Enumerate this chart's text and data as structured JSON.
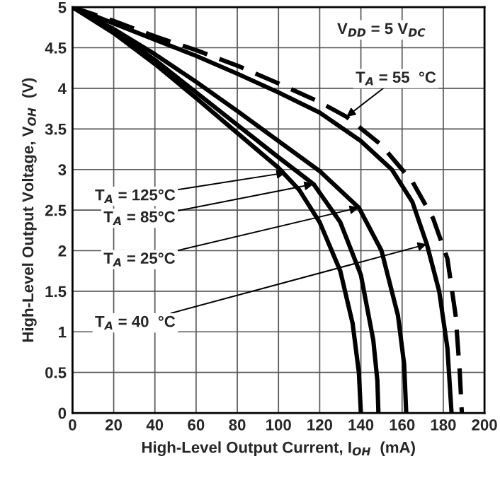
{
  "chart_data": {
    "type": "line",
    "xlabel": "High-Level Output Current, I$_{OH}$  (mA)",
    "ylabel": "High-Level Output Voltage, V$_{OH}$  (V)",
    "xlim": [
      0,
      200
    ],
    "xticks": [
      0,
      20,
      40,
      60,
      80,
      100,
      120,
      140,
      160,
      180,
      200
    ],
    "ylim": [
      0,
      5
    ],
    "yticks": [
      0,
      0.5,
      1,
      1.5,
      2,
      2.5,
      3,
      3.5,
      4,
      4.5,
      5
    ],
    "grid": true,
    "legend": false,
    "marker": "none",
    "series": [
      {
        "color": "#000000",
        "line_style": "solid",
        "x": [
          0,
          20,
          40,
          60,
          80,
          100,
          110,
          120,
          130,
          136,
          139,
          140
        ],
        "values": [
          5,
          4.68,
          4.3,
          3.88,
          3.45,
          3.02,
          2.75,
          2.35,
          1.75,
          1.1,
          0.5,
          0
        ]
      },
      {
        "color": "#000000",
        "line_style": "solid",
        "x": [
          0,
          20,
          40,
          60,
          80,
          100,
          117,
          130,
          140,
          146,
          148,
          148.5
        ],
        "values": [
          5,
          4.7,
          4.35,
          3.95,
          3.55,
          3.15,
          2.82,
          2.35,
          1.7,
          0.9,
          0.4,
          0
        ]
      },
      {
        "color": "#000000",
        "line_style": "solid",
        "x": [
          0,
          20,
          40,
          60,
          80,
          100,
          120,
          139,
          150,
          158,
          161,
          162
        ],
        "values": [
          5,
          4.73,
          4.42,
          4.08,
          3.72,
          3.35,
          2.98,
          2.53,
          2.0,
          1.2,
          0.6,
          0
        ]
      },
      {
        "color": "#000000",
        "line_style": "solid",
        "x": [
          0,
          20,
          40,
          60,
          80,
          100,
          120,
          140,
          155,
          165,
          172,
          178,
          182,
          184
        ],
        "values": [
          5,
          4.8,
          4.6,
          4.4,
          4.18,
          3.95,
          3.7,
          3.35,
          3.0,
          2.6,
          2.08,
          1.5,
          0.8,
          0
        ]
      },
      {
        "color": "#000000",
        "line_style": "dashed",
        "x": [
          0,
          20,
          40,
          60,
          80,
          100,
          120,
          133,
          150,
          165,
          175,
          182,
          186,
          188,
          189
        ],
        "values": [
          5,
          4.83,
          4.64,
          4.47,
          4.28,
          4.06,
          3.83,
          3.65,
          3.3,
          2.85,
          2.4,
          1.9,
          1.2,
          0.5,
          0
        ]
      }
    ],
    "annotations": [
      "V$_{DD}$ = 5 V$_{DC}$",
      {
        "text": "T$_{A}$ = 55  °C",
        "x": 133,
        "y": 3.65
      },
      {
        "text": "T$_{A}$ = 125°C",
        "x": 103.5,
        "y": 2.96
      },
      {
        "text": "T$_{A}$ = 85°C",
        "x": 117,
        "y": 2.82
      },
      {
        "text": "T$_{A}$ = 25°C",
        "x": 139,
        "y": 2.53
      },
      {
        "text": "T$_{A}$ = 40  °C",
        "x": 172,
        "y": 2.08
      }
    ]
  }
}
